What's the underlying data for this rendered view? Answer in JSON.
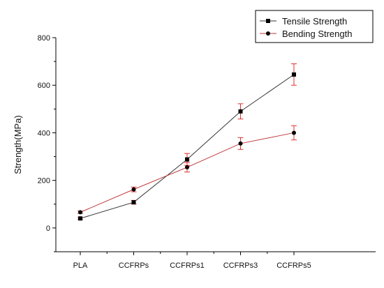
{
  "chart_data": {
    "type": "line",
    "title": "",
    "xlabel": "",
    "ylabel": "Strength(MPa)",
    "categories": [
      "PLA",
      "CCFRPs",
      "CCFRPs1",
      "CCFRPs3",
      "CCFRPs5"
    ],
    "ylim": [
      -100,
      800
    ],
    "yticks": [
      0,
      200,
      400,
      600,
      800
    ],
    "ytick_labels": [
      "0",
      "200",
      "400",
      "600",
      "800"
    ],
    "grid": false,
    "legend_position": "top-right",
    "series": [
      {
        "name": "Tensile Strength",
        "marker": "square",
        "line_color": "#333333",
        "marker_color": "#000000",
        "errorbar_color": "#e03030",
        "values": [
          40,
          108,
          288,
          490,
          645
        ],
        "errors": [
          4,
          8,
          25,
          32,
          45
        ]
      },
      {
        "name": "Bending Strength",
        "marker": "circle",
        "line_color": "#c0393b",
        "marker_color": "#000000",
        "errorbar_color": "#e03030",
        "values": [
          66,
          162,
          255,
          355,
          400
        ],
        "errors": [
          5,
          10,
          20,
          25,
          30
        ]
      }
    ]
  }
}
